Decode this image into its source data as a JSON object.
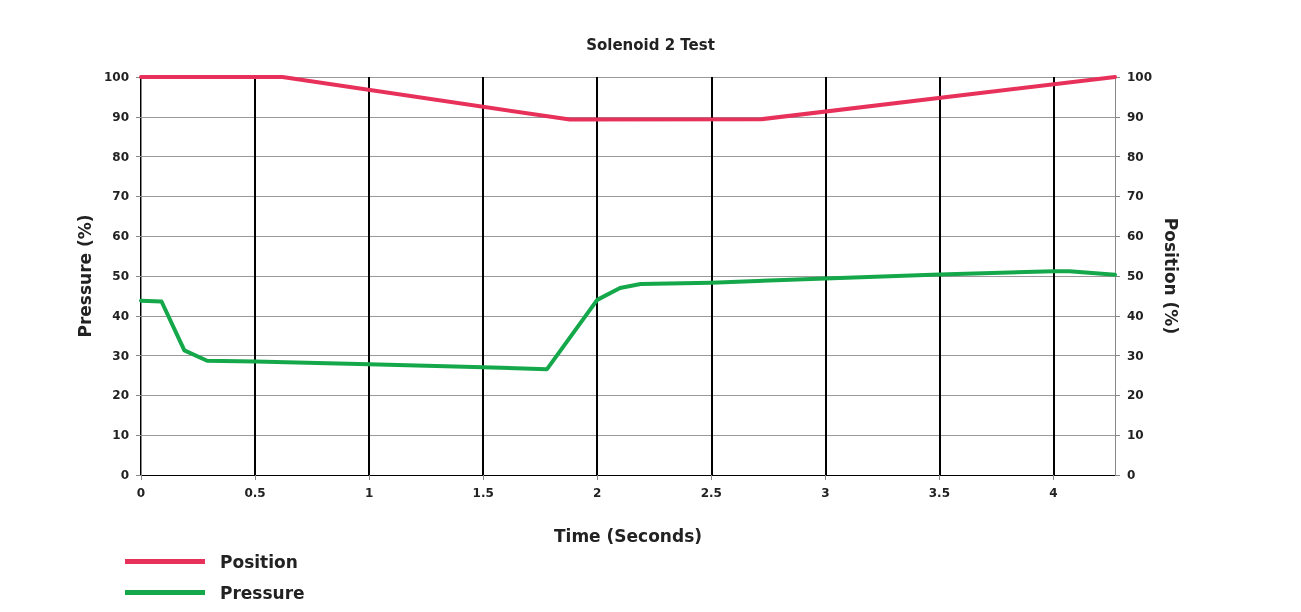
{
  "chart_data": {
    "type": "line",
    "title": "Solenoid 2 Test",
    "xlabel": "Time (Seconds)",
    "ylabel": "Pressure (%)",
    "y2label": "Position (%)",
    "xlim": [
      0,
      4.27
    ],
    "xticks": [
      0,
      0.5,
      1,
      1.5,
      2,
      2.5,
      3,
      3.5,
      4
    ],
    "ylim": [
      0,
      100
    ],
    "yticks": [
      0,
      10,
      20,
      30,
      40,
      50,
      60,
      70,
      80,
      90,
      100
    ],
    "y2lim": [
      0,
      100
    ],
    "y2ticks": [
      0,
      10,
      20,
      30,
      40,
      50,
      60,
      70,
      80,
      90,
      100
    ],
    "grid": true,
    "legend": "bottom left",
    "marker": "none",
    "line_style": "solid",
    "series": [
      {
        "name": "Position",
        "color": "#e8315a",
        "x": [
          0,
          0.62,
          1.88,
          2.72,
          4.27
        ],
        "values": [
          100,
          100,
          89.3,
          89.4,
          100
        ]
      },
      {
        "name": "Pressure",
        "color": "#14a84a",
        "x": [
          0,
          0.09,
          0.19,
          0.29,
          0.5,
          1,
          1.5,
          1.78,
          2.0,
          2.1,
          2.19,
          2.5,
          3,
          3.5,
          4,
          4.07,
          4.27
        ],
        "values": [
          43.8,
          43.6,
          31.3,
          28.7,
          28.5,
          27.8,
          27.1,
          26.6,
          44,
          47,
          48,
          48.3,
          49.4,
          50.4,
          51.2,
          51.2,
          50.3
        ]
      }
    ]
  }
}
